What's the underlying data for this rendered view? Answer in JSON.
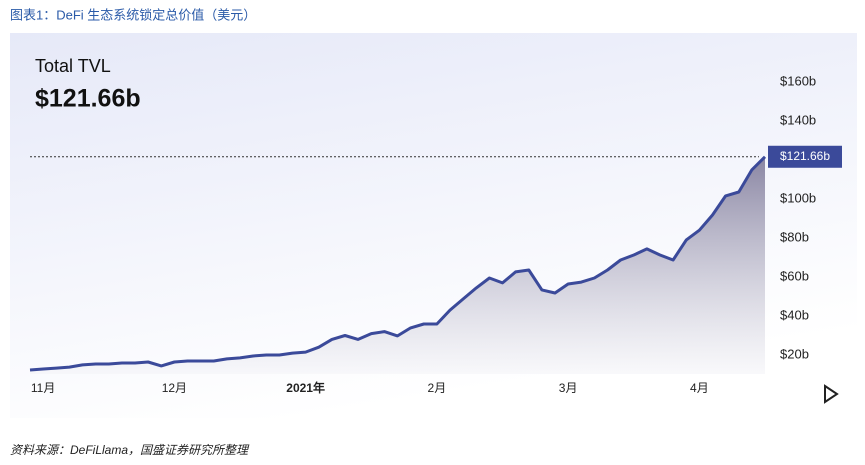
{
  "chart_data": {
    "type": "area",
    "title": "图表1：DeFi 生态系统锁定总价值（美元）",
    "headline_label": "Total TVL",
    "headline_value": "$121.66b",
    "source": "资料来源：DeFiLlama，国盛证券研究所整理",
    "categories": [
      null,
      "11月",
      null,
      null,
      null,
      null,
      null,
      null,
      null,
      null,
      null,
      "12月",
      null,
      null,
      null,
      null,
      null,
      null,
      null,
      null,
      null,
      "2021年",
      null,
      null,
      null,
      null,
      null,
      null,
      null,
      null,
      null,
      "2月",
      null,
      null,
      null,
      null,
      null,
      null,
      null,
      null,
      null,
      "3月",
      null,
      null,
      null,
      null,
      null,
      null,
      null,
      null,
      null,
      "4月",
      null,
      null,
      null,
      null,
      null
    ],
    "series": [
      {
        "name": "Total TVL",
        "color": "#3b4a9a",
        "values": [
          12.3,
          12.8,
          13.3,
          13.8,
          14.9,
          15.4,
          15.4,
          15.9,
          15.9,
          16.4,
          14.4,
          16.4,
          16.9,
          16.9,
          16.9,
          18,
          18.5,
          19.5,
          20,
          20,
          21,
          21.5,
          24,
          28,
          30,
          28,
          31,
          32,
          29.8,
          33.9,
          35.9,
          35.9,
          43,
          48.7,
          54.4,
          59.5,
          57,
          62.6,
          63.6,
          53.4,
          51.8,
          56.4,
          57.4,
          59.5,
          63.6,
          68.7,
          71.3,
          74.4,
          71.3,
          68.7,
          79,
          84,
          91.8,
          101.6,
          103.6,
          115,
          121.66
        ]
      }
    ],
    "ylim": [
      0,
      180
    ],
    "yticks": [
      {
        "value": 20,
        "label": "$20b"
      },
      {
        "value": 40,
        "label": "$40b"
      },
      {
        "value": 60,
        "label": "$60b"
      },
      {
        "value": 80,
        "label": "$80b"
      },
      {
        "value": 100,
        "label": "$100b"
      },
      {
        "value": 140,
        "label": "$140b"
      },
      {
        "value": 160,
        "label": "$160b"
      }
    ]
  }
}
